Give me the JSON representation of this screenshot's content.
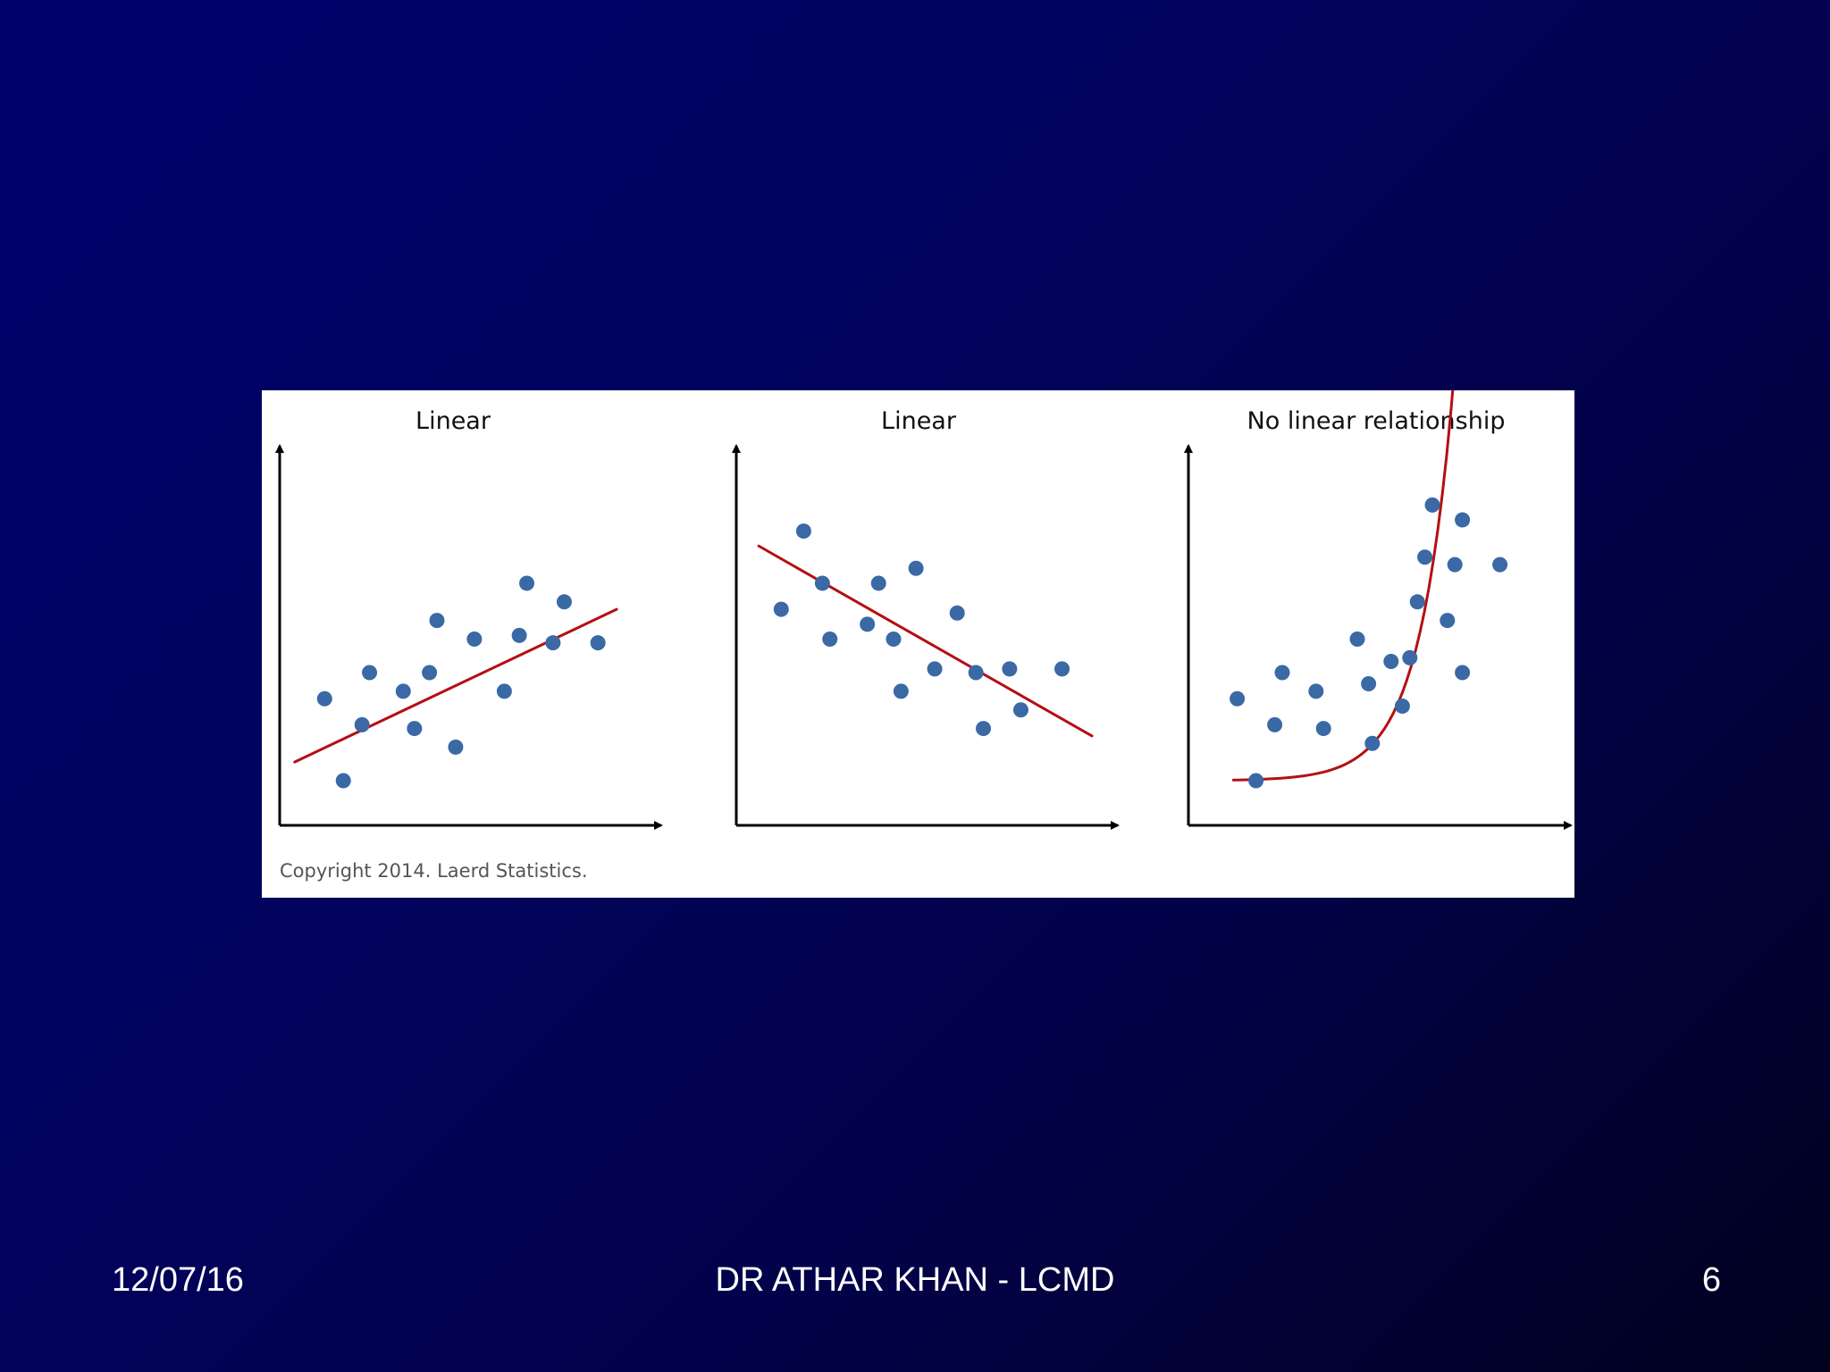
{
  "colors": {
    "point": "#3a69a5",
    "trend": "#b40f14",
    "axis": "#000000"
  },
  "figure": {
    "copyright": "Copyright 2014. Laerd Statistics."
  },
  "footer": {
    "date": "12/07/16",
    "author": "DR ATHAR KHAN - LCMD",
    "page": "6"
  },
  "chart_data": [
    {
      "type": "scatter",
      "title": "Linear",
      "xlabel": "",
      "ylabel": "",
      "xlim": [
        0,
        10
      ],
      "ylim": [
        0,
        10
      ],
      "points": [
        {
          "x": 1.2,
          "y": 3.4
        },
        {
          "x": 1.7,
          "y": 1.2
        },
        {
          "x": 2.2,
          "y": 2.7
        },
        {
          "x": 2.4,
          "y": 4.1
        },
        {
          "x": 3.3,
          "y": 3.6
        },
        {
          "x": 3.6,
          "y": 2.6
        },
        {
          "x": 4.0,
          "y": 4.1
        },
        {
          "x": 4.2,
          "y": 5.5
        },
        {
          "x": 4.7,
          "y": 2.1
        },
        {
          "x": 5.2,
          "y": 5.0
        },
        {
          "x": 6.0,
          "y": 3.6
        },
        {
          "x": 6.4,
          "y": 5.1
        },
        {
          "x": 6.6,
          "y": 6.5
        },
        {
          "x": 7.3,
          "y": 4.9
        },
        {
          "x": 7.6,
          "y": 6.0
        },
        {
          "x": 8.5,
          "y": 4.9
        }
      ],
      "trend": {
        "kind": "linear",
        "x": [
          0.4,
          9.0
        ],
        "y": [
          1.7,
          5.8
        ]
      }
    },
    {
      "type": "scatter",
      "title": "Linear",
      "xlabel": "",
      "ylabel": "",
      "xlim": [
        0,
        10
      ],
      "ylim": [
        0,
        10
      ],
      "points": [
        {
          "x": 1.2,
          "y": 5.8
        },
        {
          "x": 1.8,
          "y": 7.9
        },
        {
          "x": 2.3,
          "y": 6.5
        },
        {
          "x": 2.5,
          "y": 5.0
        },
        {
          "x": 3.5,
          "y": 5.4
        },
        {
          "x": 3.8,
          "y": 6.5
        },
        {
          "x": 4.2,
          "y": 5.0
        },
        {
          "x": 4.4,
          "y": 3.6
        },
        {
          "x": 4.8,
          "y": 6.9
        },
        {
          "x": 5.3,
          "y": 4.2
        },
        {
          "x": 5.9,
          "y": 5.7
        },
        {
          "x": 6.4,
          "y": 4.1
        },
        {
          "x": 6.6,
          "y": 2.6
        },
        {
          "x": 7.3,
          "y": 4.2
        },
        {
          "x": 7.6,
          "y": 3.1
        },
        {
          "x": 8.7,
          "y": 4.2
        }
      ],
      "trend": {
        "kind": "linear",
        "x": [
          0.6,
          9.5
        ],
        "y": [
          7.5,
          2.4
        ]
      }
    },
    {
      "type": "scatter",
      "title": "No linear relationship",
      "xlabel": "",
      "ylabel": "",
      "xlim": [
        0,
        10
      ],
      "ylim": [
        0,
        10
      ],
      "points": [
        {
          "x": 1.3,
          "y": 3.4
        },
        {
          "x": 1.8,
          "y": 1.2
        },
        {
          "x": 2.3,
          "y": 2.7
        },
        {
          "x": 2.5,
          "y": 4.1
        },
        {
          "x": 3.4,
          "y": 3.6
        },
        {
          "x": 3.6,
          "y": 2.6
        },
        {
          "x": 4.5,
          "y": 5.0
        },
        {
          "x": 4.8,
          "y": 3.8
        },
        {
          "x": 4.9,
          "y": 2.2
        },
        {
          "x": 5.4,
          "y": 4.4
        },
        {
          "x": 5.7,
          "y": 3.2
        },
        {
          "x": 5.9,
          "y": 4.5
        },
        {
          "x": 6.1,
          "y": 6.0
        },
        {
          "x": 6.3,
          "y": 7.2
        },
        {
          "x": 6.5,
          "y": 8.6
        },
        {
          "x": 6.9,
          "y": 5.5
        },
        {
          "x": 7.1,
          "y": 7.0
        },
        {
          "x": 7.3,
          "y": 8.2
        },
        {
          "x": 7.3,
          "y": 4.1
        },
        {
          "x": 8.3,
          "y": 7.0
        }
      ],
      "trend": {
        "kind": "exponential",
        "a": 1.2,
        "b": 0.0043,
        "c": 1.107,
        "x0": 1.2,
        "x1": 8.3
      }
    }
  ]
}
